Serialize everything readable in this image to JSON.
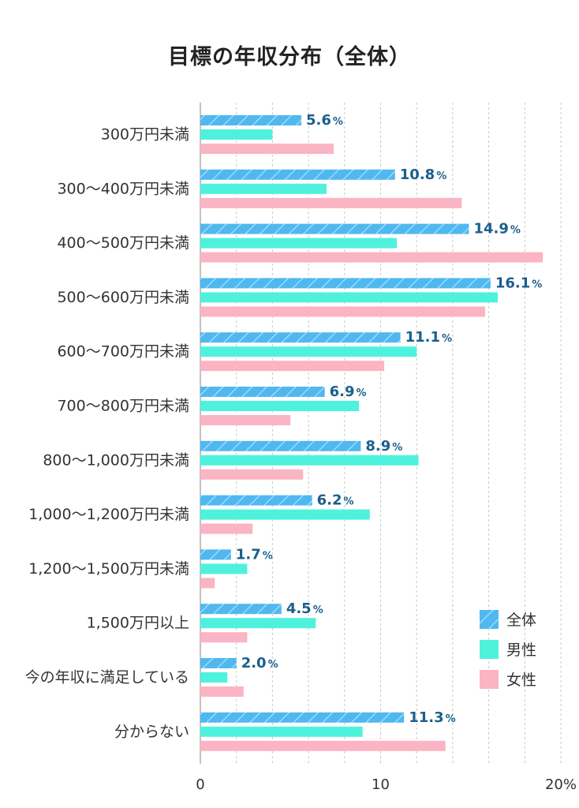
{
  "chart_data": {
    "type": "bar",
    "orientation": "horizontal",
    "title": "目標の年収分布（全体）",
    "categories": [
      "300万円未満",
      "300〜400万円未満",
      "400〜500万円未満",
      "500〜600万円未満",
      "600〜700万円未満",
      "700〜800万円未満",
      "800〜1,000万円未満",
      "1,000〜1,200万円未満",
      "1,200〜1,500万円未満",
      "1,500万円以上",
      "今の年収に満足している",
      "分からない"
    ],
    "series": [
      {
        "name": "全体",
        "color": "#4fb8f0",
        "pattern": "hatched",
        "values": [
          5.6,
          10.8,
          14.9,
          16.1,
          11.1,
          6.9,
          8.9,
          6.2,
          1.7,
          4.5,
          2.0,
          11.3
        ]
      },
      {
        "name": "男性",
        "color": "#4ef2dc",
        "values": [
          4.0,
          7.0,
          10.9,
          16.5,
          12.0,
          8.8,
          12.1,
          9.4,
          2.6,
          6.4,
          1.5,
          9.0
        ]
      },
      {
        "name": "女性",
        "color": "#fbb4c3",
        "values": [
          7.4,
          14.5,
          19.0,
          15.8,
          10.2,
          5.0,
          5.7,
          2.9,
          0.8,
          2.6,
          2.4,
          13.6
        ]
      }
    ],
    "data_labels": {
      "series": "全体",
      "values": [
        "5.6",
        "10.8",
        "14.9",
        "16.1",
        "11.1",
        "6.9",
        "8.9",
        "6.2",
        "1.7",
        "4.5",
        "2.0",
        "11.3"
      ],
      "suffix": "%"
    },
    "x_ticks": [
      "0",
      "10",
      "20%"
    ],
    "xlim": [
      0,
      20
    ],
    "grid": "vertical dashed",
    "legend_position": "bottom-right"
  }
}
